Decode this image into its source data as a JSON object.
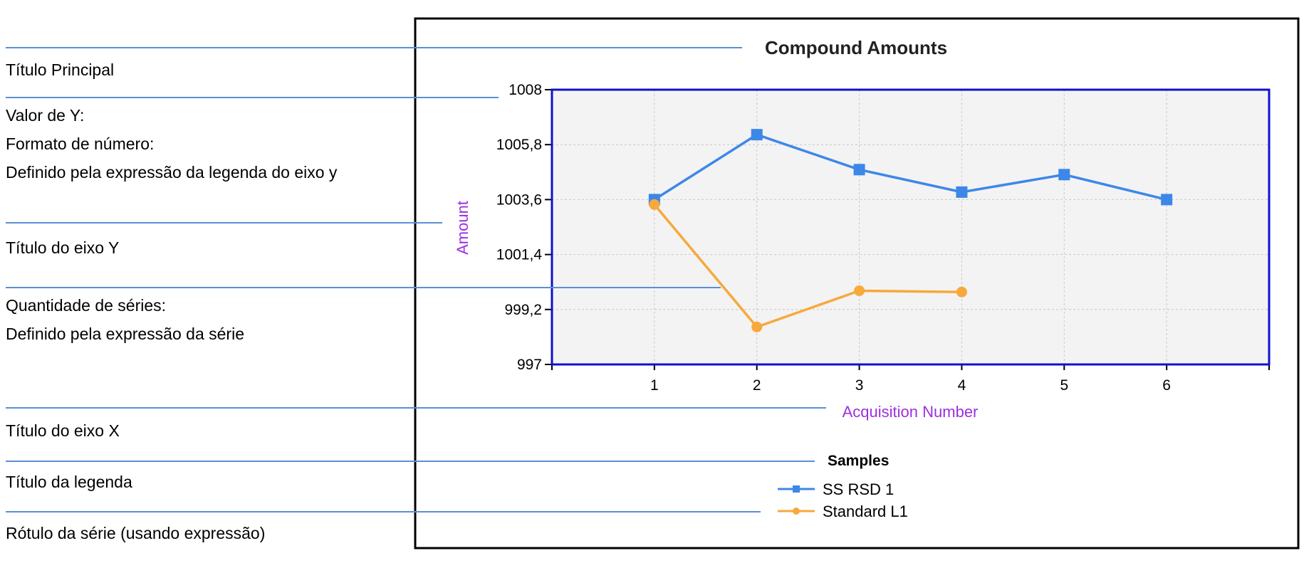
{
  "annotations": [
    {
      "id": "titulo-principal",
      "lines": [
        "Título Principal"
      ]
    },
    {
      "id": "valor-y",
      "lines": [
        "Valor de Y:",
        "Formato de número:",
        "Definido pela expressão da legenda do eixo y"
      ]
    },
    {
      "id": "titulo-eixo-y",
      "lines": [
        "Título do eixo Y"
      ]
    },
    {
      "id": "quantidade-series",
      "lines": [
        "Quantidade de séries:",
        "Definido pela expressão da série"
      ]
    },
    {
      "id": "titulo-eixo-x",
      "lines": [
        "Título do eixo X"
      ]
    },
    {
      "id": "titulo-legenda",
      "lines": [
        "Título da legenda"
      ]
    },
    {
      "id": "rotulo-serie",
      "lines": [
        "Rótulo da série (usando expressão)"
      ]
    }
  ],
  "colors": {
    "annotation_line": "#5b8fd6",
    "plot_border": "#1010cc",
    "plot_background": "#f3f3f3",
    "grid": "#c8c8c8",
    "axis_title": "#9b30e0",
    "frame": "#000000"
  },
  "chart_data": {
    "type": "line",
    "title": "Compound Amounts",
    "xlabel": "Acquisition Number",
    "ylabel": "Amount",
    "x": [
      1,
      2,
      3,
      4,
      5,
      6
    ],
    "xlim": [
      0,
      7
    ],
    "ylim": [
      997,
      1008
    ],
    "yticks": [
      "1008",
      "1005,8",
      "1003,6",
      "1001,4",
      "999,2",
      "997"
    ],
    "ytick_values": [
      1008,
      1005.8,
      1003.6,
      1001.4,
      999.2,
      997
    ],
    "grid": true,
    "legend": {
      "title": "Samples",
      "placement": "bottom-center"
    },
    "series": [
      {
        "name": "SS RSD 1",
        "color": "#3d87e8",
        "marker": "square",
        "values": [
          1003.6,
          1006.2,
          1004.8,
          1003.9,
          1004.6,
          1003.6
        ]
      },
      {
        "name": "Standard L1",
        "color": "#f7a93c",
        "marker": "circle",
        "values": [
          1003.4,
          998.5,
          999.95,
          999.9,
          null,
          null
        ]
      }
    ]
  }
}
